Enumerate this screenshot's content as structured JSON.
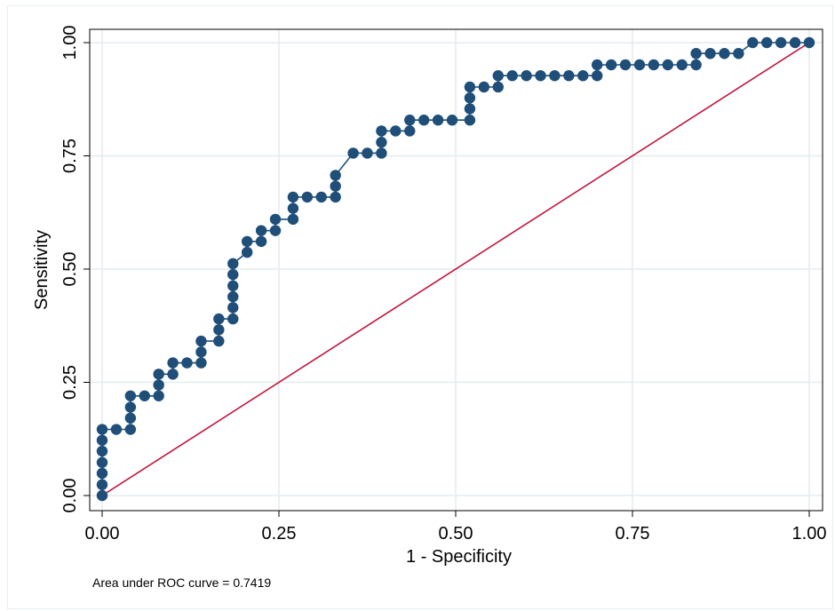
{
  "chart_data": {
    "type": "scatter",
    "xlabel": "1 - Specificity",
    "ylabel": "Sensitivity",
    "xlim": [
      0,
      1
    ],
    "ylim": [
      0,
      1
    ],
    "xticks": [
      {
        "value": 0,
        "label": "0.00"
      },
      {
        "value": 0.25,
        "label": "0.25"
      },
      {
        "value": 0.5,
        "label": "0.50"
      },
      {
        "value": 0.75,
        "label": "0.75"
      },
      {
        "value": 1,
        "label": "1.00"
      }
    ],
    "yticks": [
      {
        "value": 0,
        "label": "0.00"
      },
      {
        "value": 0.25,
        "label": "0.25"
      },
      {
        "value": 0.5,
        "label": "0.50"
      },
      {
        "value": 0.75,
        "label": "0.75"
      },
      {
        "value": 1,
        "label": "1.00"
      }
    ],
    "grid": true,
    "note": "Area under ROC curve = 0.7419",
    "colors": {
      "roc": "#1f4e79",
      "reference": "#c0143c",
      "grid": "#e3ecef"
    },
    "series": [
      {
        "kind": "roc-curve",
        "points": [
          [
            0,
            0
          ],
          [
            0,
            0.024
          ],
          [
            0,
            0.049
          ],
          [
            0,
            0.073
          ],
          [
            0,
            0.098
          ],
          [
            0,
            0.122
          ],
          [
            0,
            0.146
          ],
          [
            0.02,
            0.146
          ],
          [
            0.04,
            0.146
          ],
          [
            0.04,
            0.171
          ],
          [
            0.04,
            0.195
          ],
          [
            0.04,
            0.22
          ],
          [
            0.06,
            0.22
          ],
          [
            0.08,
            0.22
          ],
          [
            0.08,
            0.244
          ],
          [
            0.08,
            0.268
          ],
          [
            0.1,
            0.268
          ],
          [
            0.1,
            0.293
          ],
          [
            0.12,
            0.293
          ],
          [
            0.14,
            0.293
          ],
          [
            0.14,
            0.317
          ],
          [
            0.14,
            0.341
          ],
          [
            0.165,
            0.341
          ],
          [
            0.165,
            0.366
          ],
          [
            0.165,
            0.39
          ],
          [
            0.185,
            0.39
          ],
          [
            0.185,
            0.415
          ],
          [
            0.185,
            0.439
          ],
          [
            0.185,
            0.463
          ],
          [
            0.185,
            0.488
          ],
          [
            0.185,
            0.512
          ],
          [
            0.205,
            0.537
          ],
          [
            0.205,
            0.561
          ],
          [
            0.225,
            0.561
          ],
          [
            0.225,
            0.585
          ],
          [
            0.245,
            0.585
          ],
          [
            0.245,
            0.61
          ],
          [
            0.27,
            0.61
          ],
          [
            0.27,
            0.634
          ],
          [
            0.27,
            0.659
          ],
          [
            0.29,
            0.659
          ],
          [
            0.31,
            0.659
          ],
          [
            0.33,
            0.659
          ],
          [
            0.33,
            0.683
          ],
          [
            0.33,
            0.707
          ],
          [
            0.355,
            0.756
          ],
          [
            0.375,
            0.756
          ],
          [
            0.395,
            0.756
          ],
          [
            0.395,
            0.78
          ],
          [
            0.395,
            0.805
          ],
          [
            0.415,
            0.805
          ],
          [
            0.435,
            0.805
          ],
          [
            0.435,
            0.829
          ],
          [
            0.455,
            0.829
          ],
          [
            0.475,
            0.829
          ],
          [
            0.495,
            0.829
          ],
          [
            0.52,
            0.829
          ],
          [
            0.52,
            0.854
          ],
          [
            0.52,
            0.878
          ],
          [
            0.52,
            0.902
          ],
          [
            0.54,
            0.902
          ],
          [
            0.56,
            0.902
          ],
          [
            0.56,
            0.927
          ],
          [
            0.58,
            0.927
          ],
          [
            0.6,
            0.927
          ],
          [
            0.62,
            0.927
          ],
          [
            0.64,
            0.927
          ],
          [
            0.66,
            0.927
          ],
          [
            0.68,
            0.927
          ],
          [
            0.7,
            0.927
          ],
          [
            0.7,
            0.951
          ],
          [
            0.72,
            0.951
          ],
          [
            0.74,
            0.951
          ],
          [
            0.76,
            0.951
          ],
          [
            0.78,
            0.951
          ],
          [
            0.8,
            0.951
          ],
          [
            0.82,
            0.951
          ],
          [
            0.84,
            0.951
          ],
          [
            0.84,
            0.976
          ],
          [
            0.86,
            0.976
          ],
          [
            0.88,
            0.976
          ],
          [
            0.9,
            0.976
          ],
          [
            0.92,
            1
          ],
          [
            0.94,
            1
          ],
          [
            0.96,
            1
          ],
          [
            0.98,
            1
          ],
          [
            1,
            1
          ]
        ]
      },
      {
        "kind": "reference-line",
        "points": [
          [
            0,
            0
          ],
          [
            1,
            1
          ]
        ]
      }
    ]
  }
}
